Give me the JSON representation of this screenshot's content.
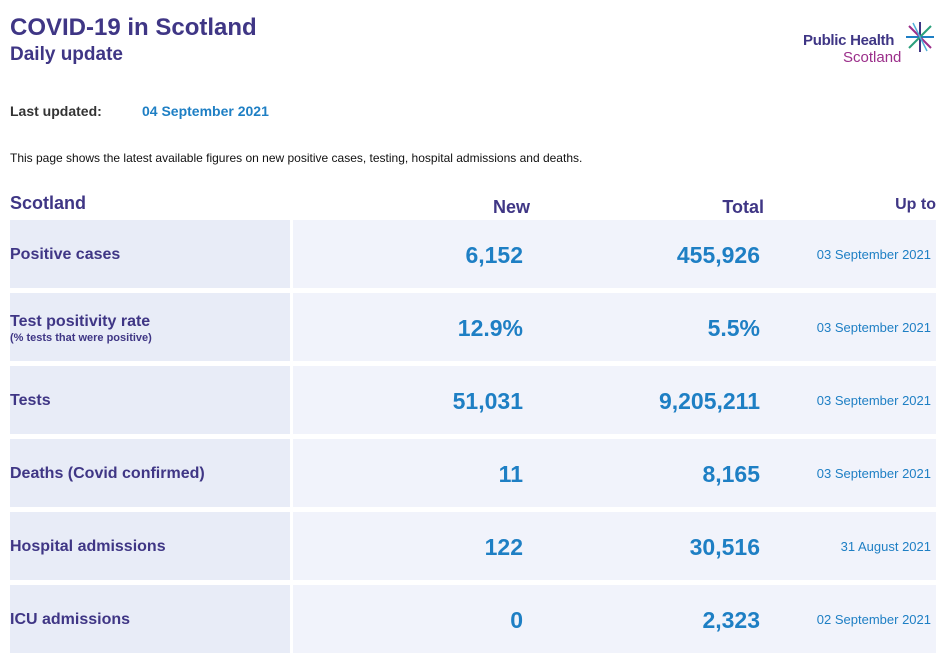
{
  "header": {
    "title": "COVID-19 in Scotland",
    "subtitle": "Daily update",
    "logo": {
      "line1": "Public Health",
      "line2": "Scotland",
      "icon": "star-burst-icon"
    }
  },
  "updated": {
    "label": "Last updated:",
    "value": "04 September 2021"
  },
  "intro": "This page shows the latest available figures on new positive cases, testing, hospital admissions and deaths.",
  "table": {
    "headers": {
      "region": "Scotland",
      "new": "New",
      "total": "Total",
      "up_to": "Up to"
    },
    "rows": [
      {
        "label": "Positive cases",
        "sublabel": "",
        "new": "6,152",
        "total": "455,926",
        "up_to": "03 September 2021"
      },
      {
        "label": "Test positivity rate",
        "sublabel": "(% tests that were positive)",
        "new": "12.9%",
        "total": "5.5%",
        "up_to": "03 September 2021"
      },
      {
        "label": "Tests",
        "sublabel": "",
        "new": "51,031",
        "total": "9,205,211",
        "up_to": "03 September 2021"
      },
      {
        "label": "Deaths (Covid confirmed)",
        "sublabel": "",
        "new": "11",
        "total": "8,165",
        "up_to": "03 September 2021"
      },
      {
        "label": "Hospital admissions",
        "sublabel": "",
        "new": "122",
        "total": "30,516",
        "up_to": "31 August 2021"
      },
      {
        "label": "ICU admissions",
        "sublabel": "",
        "new": "0",
        "total": "2,323",
        "up_to": "02 September 2021"
      }
    ]
  },
  "colors": {
    "heading": "#3f3685",
    "value": "#1e7fc4",
    "label_bg": "#e8ecf7",
    "data_bg": "#f1f3fb",
    "logo_accent": "#9b2e8a"
  }
}
